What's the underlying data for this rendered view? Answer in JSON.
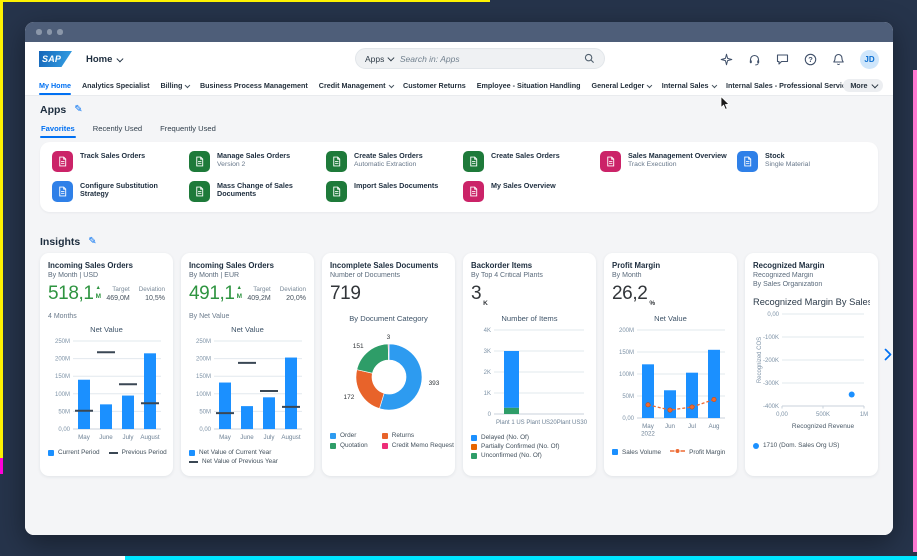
{
  "shell": {
    "title": "Home",
    "search": {
      "scope": "Apps",
      "placeholder": "Search in: Apps"
    },
    "icons": [
      "assistant-icon",
      "support-icon",
      "feedback-icon",
      "help-icon",
      "notifications-icon"
    ],
    "avatar": "JD"
  },
  "nav": {
    "items": [
      {
        "label": "My Home",
        "active": true,
        "chevron": false
      },
      {
        "label": "Analytics Specialist",
        "chevron": false
      },
      {
        "label": "Billing",
        "chevron": true
      },
      {
        "label": "Business Process Management",
        "chevron": false
      },
      {
        "label": "Credit Management",
        "chevron": true
      },
      {
        "label": "Customer Returns",
        "chevron": false
      },
      {
        "label": "Employee - Situation Handling",
        "chevron": false
      },
      {
        "label": "General Ledger",
        "chevron": true
      },
      {
        "label": "Internal Sales",
        "chevron": true
      },
      {
        "label": "Internal Sales - Professional Services",
        "chevron": false
      }
    ],
    "more_label": "More"
  },
  "apps": {
    "title": "Apps",
    "tabs": [
      "Favorites",
      "Recently Used",
      "Frequently Used"
    ],
    "active_tab": "Favorites",
    "tiles": [
      {
        "label": "Track Sales Orders",
        "sub": "",
        "color": "#CB2368"
      },
      {
        "label": "Manage Sales Orders",
        "sub": "Version 2",
        "color": "#1E7A3A"
      },
      {
        "label": "Create Sales Orders",
        "sub": "Automatic Extraction",
        "color": "#1E7A3A"
      },
      {
        "label": "Create Sales Orders",
        "sub": "",
        "color": "#1E7A3A"
      },
      {
        "label": "Sales Management Overview",
        "sub": "Track Execution",
        "color": "#CB2368"
      },
      {
        "label": "Stock",
        "sub": "Single Material",
        "color": "#2F80E8"
      },
      {
        "label": "Configure Substitution Strategy",
        "sub": "",
        "color": "#2F80E8"
      },
      {
        "label": "Mass Change of Sales Documents",
        "sub": "",
        "color": "#1E7A3A"
      },
      {
        "label": "Import Sales Documents",
        "sub": "",
        "color": "#1E7A3A"
      },
      {
        "label": "My Sales Overview",
        "sub": "",
        "color": "#CB2368"
      }
    ]
  },
  "insights": {
    "title": "Insights",
    "cards": [
      {
        "title": "Incoming Sales Orders",
        "subs": [
          "By Month | USD"
        ],
        "kpi": {
          "value": "518,1",
          "unit": "M",
          "trend": "up",
          "state": "good"
        },
        "aside": [
          {
            "label": "Target",
            "value": "469,0M"
          },
          {
            "label": "Deviation",
            "value": "10,5%"
          }
        ],
        "footnote": "4 Months",
        "chart_data": {
          "type": "bar",
          "title": "Net Value",
          "ymax": 250,
          "yticks": [
            {
              "label": "250M",
              "v": 250
            },
            {
              "label": "200M",
              "v": 200
            },
            {
              "label": "150M",
              "v": 150
            },
            {
              "label": "100M",
              "v": 100
            },
            {
              "label": "50M",
              "v": 50
            },
            {
              "label": "0,00",
              "v": 0
            }
          ],
          "categories": [
            "May",
            "June",
            "July",
            "August"
          ],
          "bars": {
            "name": "Current Period",
            "color": "#1B90FF",
            "values": [
              140,
              70,
              95,
              215
            ]
          },
          "targets": {
            "name": "Previous Period",
            "color": "#3A4754",
            "values": [
              52,
              218,
              127,
              73
            ]
          },
          "legend": [
            {
              "label": "Current Period",
              "shape": "square",
              "color": "#1B90FF"
            },
            {
              "label": "Previous Period",
              "shape": "dash",
              "color": "#3A4754"
            }
          ],
          "legend_layout": "row"
        }
      },
      {
        "title": "Incoming Sales Orders",
        "subs": [
          "By Month | EUR"
        ],
        "kpi": {
          "value": "491,1",
          "unit": "M",
          "trend": "up",
          "state": "good"
        },
        "aside": [
          {
            "label": "Target",
            "value": "409,2M"
          },
          {
            "label": "Deviation",
            "value": "20,0%"
          }
        ],
        "footnote": "By Net Value",
        "chart_data": {
          "type": "bar",
          "title": "Net Value",
          "ymax": 250,
          "yticks": [
            {
              "label": "250M",
              "v": 250
            },
            {
              "label": "200M",
              "v": 200
            },
            {
              "label": "150M",
              "v": 150
            },
            {
              "label": "100M",
              "v": 100
            },
            {
              "label": "50M",
              "v": 50
            },
            {
              "label": "0,00",
              "v": 0
            }
          ],
          "categories": [
            "May",
            "June",
            "July",
            "August"
          ],
          "bars": {
            "name": "Net Value of Current Year",
            "color": "#1B90FF",
            "values": [
              132,
              65,
              90,
              203
            ]
          },
          "targets": {
            "name": "Net Value of Previous Year",
            "color": "#3A4754",
            "values": [
              45,
              188,
              108,
              63
            ]
          },
          "legend": [
            {
              "label": "Net Value of Current Year",
              "shape": "square",
              "color": "#1B90FF"
            },
            {
              "label": "Net Value of Previous Year",
              "shape": "dash",
              "color": "#3A4754"
            }
          ],
          "legend_layout": "column"
        }
      },
      {
        "title": "Incomplete Sales Documents",
        "subs": [
          "Number of Documents"
        ],
        "kpi": {
          "value": "719"
        },
        "chart_data": {
          "type": "donut",
          "title": "By Document Category",
          "segments": [
            {
              "label": "Order",
              "value": 393,
              "color": "#2D9BF0"
            },
            {
              "label": "Returns",
              "value": 172,
              "color": "#E8632A"
            },
            {
              "label": "Quotation",
              "value": 151,
              "color": "#2E9D68"
            },
            {
              "label": "Credit Memo Request",
              "value": 3,
              "color": "#ED2D78"
            }
          ],
          "legend": [
            {
              "label": "Order",
              "shape": "square",
              "color": "#2D9BF0"
            },
            {
              "label": "Quotation",
              "shape": "square",
              "color": "#2E9D68"
            },
            {
              "label": "Returns",
              "shape": "square",
              "color": "#E8632A"
            },
            {
              "label": "Credit Memo Request",
              "shape": "square",
              "color": "#ED2D78"
            }
          ],
          "legend_layout": "grid2"
        }
      },
      {
        "title": "Backorder Items",
        "subs": [
          "By Top 4 Critical Plants"
        ],
        "kpi": {
          "value": "3",
          "unit": "K",
          "unit_pos": "sub"
        },
        "chart_data": {
          "type": "stackedbar",
          "title": "Number of Items",
          "ymax": 4,
          "yticks": [
            {
              "label": "4K",
              "v": 4
            },
            {
              "label": "3K",
              "v": 3
            },
            {
              "label": "2K",
              "v": 2
            },
            {
              "label": "1K",
              "v": 1
            },
            {
              "label": "0",
              "v": 0
            }
          ],
          "axis_caption": "Plant 1 US Plant US20Plant US30",
          "segments": [
            {
              "label": "Unconfirmed (No. Of)",
              "value": 0.3,
              "color": "#2E9D68"
            },
            {
              "label": "Delayed (No. Of)",
              "value": 2.7,
              "color": "#1B90FF"
            }
          ],
          "legend": [
            {
              "label": "Delayed (No. Of)",
              "shape": "square",
              "color": "#1B90FF"
            },
            {
              "label": "Partially Confirmed (No. Of)",
              "shape": "square",
              "color": "#E76500"
            },
            {
              "label": "Unconfirmed (No. Of)",
              "shape": "square",
              "color": "#2E9D68"
            }
          ],
          "legend_layout": "column"
        }
      },
      {
        "title": "Profit Margin",
        "subs": [
          "By Month"
        ],
        "kpi": {
          "value": "26,2",
          "unit": "%",
          "unit_pos": "sub"
        },
        "chart_data": {
          "type": "bar",
          "title": "Net Value",
          "ymax": 200,
          "yticks": [
            {
              "label": "200M",
              "v": 200
            },
            {
              "label": "150M",
              "v": 150
            },
            {
              "label": "100M",
              "v": 100
            },
            {
              "label": "50M",
              "v": 50
            },
            {
              "label": "0,00",
              "v": 0
            }
          ],
          "categories": [
            [
              "May",
              "2022"
            ],
            "Jun",
            "Jul",
            "Aug"
          ],
          "bars": {
            "name": "Sales Volume",
            "color": "#1B90FF",
            "values": [
              122,
              63,
              103,
              155
            ]
          },
          "line": {
            "name": "Profit Margin",
            "color": "#ED6A32",
            "values": [
              30,
              18,
              25,
              42
            ]
          },
          "legend": [
            {
              "label": "Sales Volume",
              "shape": "square",
              "color": "#1B90FF"
            },
            {
              "label": "Profit Margin",
              "shape": "dashdot",
              "color": "#ED6A32"
            }
          ],
          "legend_layout": "row"
        }
      },
      {
        "title": "Recognized Margin",
        "subs": [
          "Recognized Margin",
          "By Sales Organization"
        ],
        "chart_title_line": "Recognized Margin By Sales Organz...",
        "chart_data": {
          "type": "scatter",
          "ylabel": "Recognized COS",
          "xlabel": "Recognized Revenue",
          "yticks": [
            {
              "label": "0,00",
              "v": 0
            },
            {
              "label": "-100K",
              "v": -100
            },
            {
              "label": "-200K",
              "v": -200
            },
            {
              "label": "-300K",
              "v": -300
            },
            {
              "label": "-400K",
              "v": -400
            }
          ],
          "xticks": [
            {
              "label": "0,00",
              "v": 0
            },
            {
              "label": "500K",
              "v": 500
            },
            {
              "label": "1M",
              "v": 1000
            }
          ],
          "points": [
            {
              "x": 850,
              "y": -350,
              "color": "#1B90FF"
            }
          ],
          "legend": [
            {
              "label": "1710 (Dom. Sales Org US)",
              "shape": "dot",
              "color": "#1B90FF"
            }
          ],
          "legend_layout": "row"
        }
      }
    ]
  },
  "colors": {
    "accent": "#0070f2",
    "good": "#2e9440",
    "page_bg": "#f4f5f7",
    "frame_bg": "#26344b"
  }
}
